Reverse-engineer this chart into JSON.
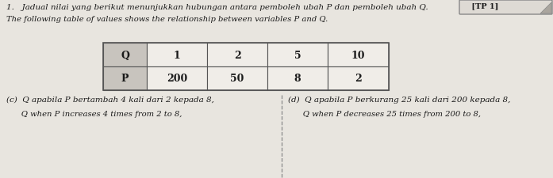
{
  "title_line1": "1.   Jadual nilai yang berikut menunjukkan hubungan antara pemboleh ubah P dan pemboleh ubah Q.",
  "title_line2": "The following table of values shows the relationship between variables P and Q.",
  "tag": " [TP 1]",
  "table_headers": [
    "Q",
    "1",
    "2",
    "5",
    "10"
  ],
  "table_row2": [
    "P",
    "200",
    "50",
    "8",
    "2"
  ],
  "part_c_malay": "(c)  Q apabila P bertambah 4 kali dari 2 kepada 8,",
  "part_c_english": "      Q when P increases 4 times from 2 to 8,",
  "part_d_malay": "(d)  Q apabila P berkurang 25 kali dari 200 kepada 8,",
  "part_d_english": "      Q when P decreases 25 times from 200 to 8,",
  "page_bg": "#e8e5df",
  "cell_bg_label": "#c8c4be",
  "cell_bg_value": "#f0ede8",
  "border_color": "#555555",
  "text_color": "#1a1a1a",
  "divider_color": "#888888"
}
